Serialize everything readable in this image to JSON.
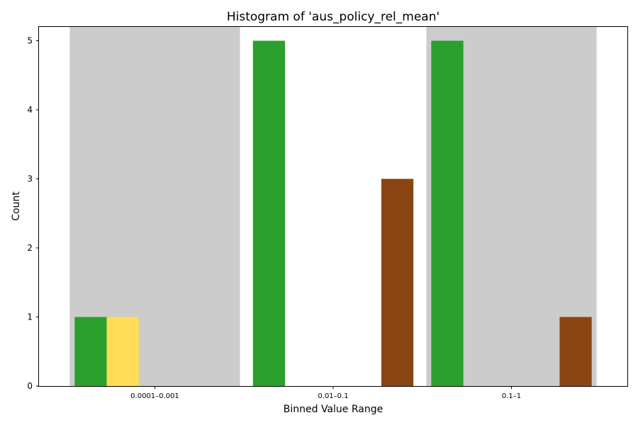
{
  "chart_data": {
    "type": "bar",
    "title": "Histogram of 'aus_policy_rel_mean'",
    "xlabel": "Binned Value Range",
    "ylabel": "Count",
    "categories": [
      "0.0001–0.001",
      "0.01–0.1",
      "0.1–1"
    ],
    "series": [
      {
        "color": "#2ca02c",
        "values": [
          1,
          5,
          5
        ]
      },
      {
        "color": "#ffdd57",
        "values": [
          1,
          0,
          0
        ]
      },
      {
        "color": "#ffffff",
        "values": [
          0,
          0,
          0
        ]
      },
      {
        "color": "#ffffff",
        "values": [
          0,
          0,
          0
        ]
      },
      {
        "color": "#8b4513",
        "values": [
          0,
          3,
          1
        ]
      }
    ],
    "group_background_colors": [
      "#cccccc",
      "#ffffff",
      "#cccccc"
    ],
    "ylim": [
      0,
      5.2
    ],
    "yticks": [
      0,
      1,
      2,
      3,
      4,
      5
    ],
    "grid": false,
    "legend": "none"
  }
}
